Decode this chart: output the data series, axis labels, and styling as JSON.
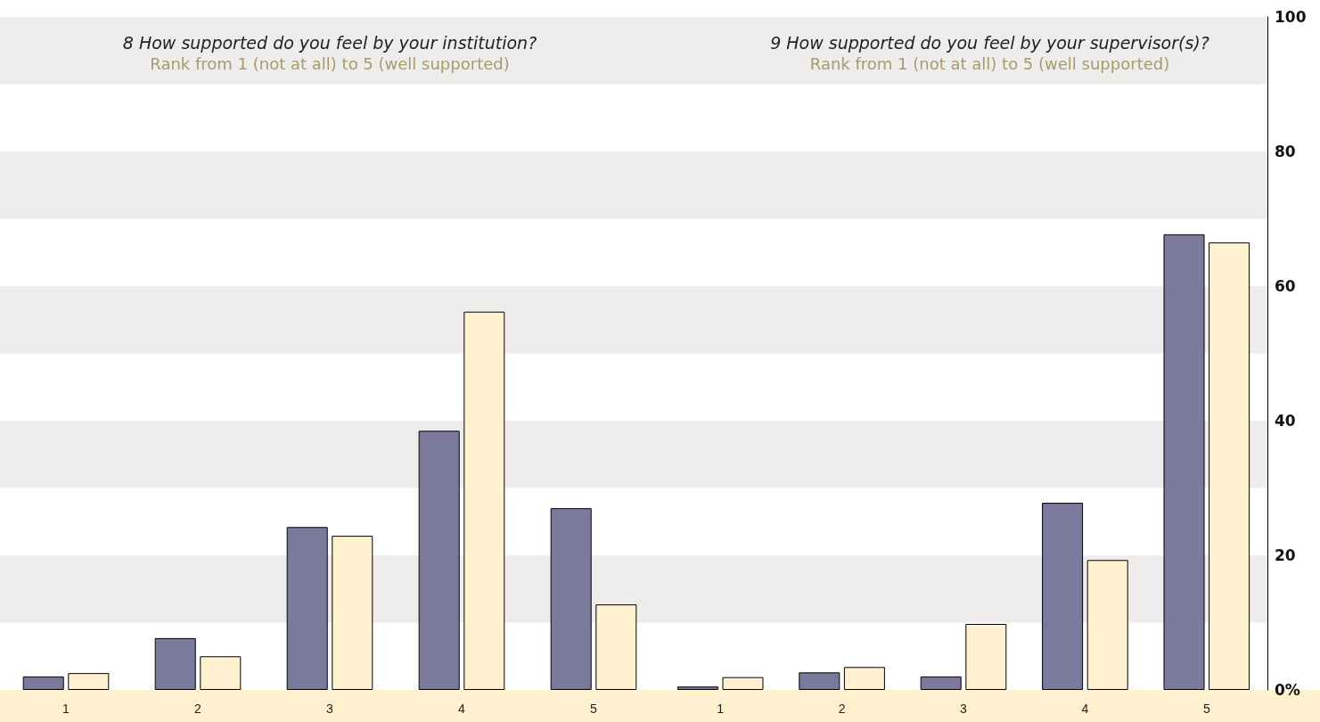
{
  "chart_data": [
    {
      "type": "bar",
      "title": "8 How supported do you feel by your institution?",
      "subtitle": "Rank from 1 (not at all) to 5 (well supported)",
      "categories": [
        "1",
        "2",
        "3",
        "4",
        "5"
      ],
      "series": [
        {
          "color": "#7b7a9c",
          "values": [
            2.0,
            7.7,
            24.2,
            38.5,
            27.0
          ]
        },
        {
          "color": "#fff1d0",
          "values": [
            2.5,
            5.0,
            22.9,
            56.2,
            12.7
          ]
        }
      ],
      "ylim": [
        0,
        100
      ],
      "tick_labels": "x",
      "grid": false,
      "bands": [
        {
          "axis": "y",
          "from": 10,
          "to": 20,
          "color": "#eeedeb"
        },
        {
          "axis": "y",
          "from": 30,
          "to": 40,
          "color": "#eeedeb"
        },
        {
          "axis": "y",
          "from": 50,
          "to": 60,
          "color": "#eeedeb"
        },
        {
          "axis": "y",
          "from": 70,
          "to": 80,
          "color": "#eeedeb"
        },
        {
          "axis": "y",
          "from": 90,
          "to": 100,
          "color": "#eeedeb"
        }
      ]
    },
    {
      "type": "bar",
      "title": "9 How supported do you feel by your supervisor(s)?",
      "subtitle": "Rank from 1 (not at all) to 5 (well supported)",
      "categories": [
        "1",
        "2",
        "3",
        "4",
        "5"
      ],
      "series": [
        {
          "color": "#7b7a9c",
          "values": [
            0.5,
            2.6,
            2.0,
            27.8,
            67.7
          ]
        },
        {
          "color": "#fff1d0",
          "values": [
            1.9,
            3.4,
            9.8,
            19.3,
            66.5
          ]
        }
      ],
      "ylim": [
        0,
        100
      ],
      "yticks": [
        {
          "value": 0,
          "label": "0%"
        },
        20,
        40,
        60,
        80,
        100
      ],
      "grid": false,
      "bands": [
        {
          "axis": "y",
          "from": 10,
          "to": 20,
          "color": "#eeedeb"
        },
        {
          "axis": "y",
          "from": 30,
          "to": 40,
          "color": "#eeedeb"
        },
        {
          "axis": "y",
          "from": 50,
          "to": 60,
          "color": "#eeedeb"
        },
        {
          "axis": "y",
          "from": 70,
          "to": 80,
          "color": "#eeedeb"
        },
        {
          "axis": "y",
          "from": 90,
          "to": 100,
          "color": "#eeedeb"
        }
      ]
    }
  ]
}
